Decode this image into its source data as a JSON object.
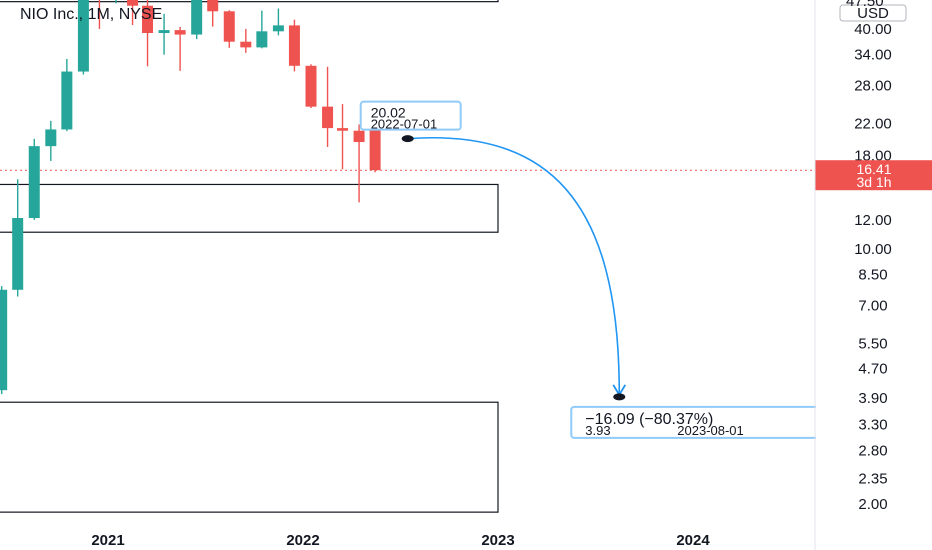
{
  "symbol_title": "NIO Inc., 1M, NYSE",
  "currency_label": "USD",
  "top_price_partial": "47.50",
  "price_badge": {
    "price": "16.41",
    "countdown": "3d 1h",
    "color": "#ef5350"
  },
  "colors": {
    "up": "#26a69a",
    "down": "#ef5350",
    "arrow": "#2196f3",
    "box": "#131722",
    "dotted": "#ef5350",
    "axis_text": "#131722"
  },
  "chart_data": {
    "type": "candlestick",
    "title": "NIO Inc., 1M, NYSE",
    "y_scale": "log",
    "ylim": [
      1.82,
      52.0
    ],
    "y_ticks": [
      "40.00",
      "34.00",
      "28.00",
      "22.00",
      "18.00",
      "12.00",
      "10.00",
      "8.50",
      "7.00",
      "5.50",
      "4.70",
      "3.90",
      "3.30",
      "2.80",
      "2.35",
      "2.00"
    ],
    "x_ticks": [
      "2021",
      "2022",
      "2023",
      "2024"
    ],
    "candles": [
      {
        "date": "2020-04-01",
        "open": 2.6,
        "high": 3.95,
        "low": 2.5,
        "close": 3.95
      },
      {
        "date": "2020-05-01",
        "open": 3.95,
        "high": 4.3,
        "low": 3.45,
        "close": 4.1
      },
      {
        "date": "2020-06-01",
        "open": 4.1,
        "high": 7.9,
        "low": 4.0,
        "close": 7.72
      },
      {
        "date": "2020-07-01",
        "open": 7.72,
        "high": 15.5,
        "low": 7.4,
        "close": 12.14
      },
      {
        "date": "2020-08-01",
        "open": 12.14,
        "high": 20.0,
        "low": 12.0,
        "close": 19.1
      },
      {
        "date": "2020-09-01",
        "open": 19.1,
        "high": 22.4,
        "low": 17.4,
        "close": 21.22
      },
      {
        "date": "2020-10-01",
        "open": 21.22,
        "high": 33.1,
        "low": 21.0,
        "close": 30.57
      },
      {
        "date": "2020-11-01",
        "open": 30.57,
        "high": 55.0,
        "low": 30.0,
        "close": 48.95
      },
      {
        "date": "2020-12-01",
        "open": 48.95,
        "high": 57.2,
        "low": 40.0,
        "close": 48.74
      },
      {
        "date": "2021-01-01",
        "open": 48.74,
        "high": 66.99,
        "low": 47.0,
        "close": 56.9
      },
      {
        "date": "2021-02-01",
        "open": 56.9,
        "high": 59.0,
        "low": 41.0,
        "close": 46.3
      },
      {
        "date": "2021-03-01",
        "open": 46.3,
        "high": 50.0,
        "low": 31.6,
        "close": 38.98
      },
      {
        "date": "2021-04-01",
        "open": 38.98,
        "high": 44.0,
        "low": 34.0,
        "close": 39.7
      },
      {
        "date": "2021-05-01",
        "open": 39.7,
        "high": 40.5,
        "low": 30.7,
        "close": 38.6
      },
      {
        "date": "2021-06-01",
        "open": 38.6,
        "high": 55.1,
        "low": 37.5,
        "close": 53.2
      },
      {
        "date": "2021-07-01",
        "open": 53.2,
        "high": 54.3,
        "low": 40.6,
        "close": 44.7
      },
      {
        "date": "2021-08-01",
        "open": 44.7,
        "high": 45.0,
        "low": 35.5,
        "close": 36.9
      },
      {
        "date": "2021-09-01",
        "open": 36.9,
        "high": 40.0,
        "low": 34.4,
        "close": 35.6
      },
      {
        "date": "2021-10-01",
        "open": 35.6,
        "high": 44.9,
        "low": 35.4,
        "close": 39.4
      },
      {
        "date": "2021-11-01",
        "open": 39.4,
        "high": 45.5,
        "low": 38.4,
        "close": 40.9
      },
      {
        "date": "2021-12-01",
        "open": 40.9,
        "high": 42.4,
        "low": 30.6,
        "close": 31.7
      },
      {
        "date": "2022-01-01",
        "open": 31.7,
        "high": 32.0,
        "low": 24.3,
        "close": 24.5
      },
      {
        "date": "2022-02-01",
        "open": 24.5,
        "high": 31.5,
        "low": 19.0,
        "close": 21.4
      },
      {
        "date": "2022-03-01",
        "open": 21.4,
        "high": 24.9,
        "low": 16.5,
        "close": 21.05
      },
      {
        "date": "2022-04-01",
        "open": 21.05,
        "high": 21.9,
        "low": 13.4,
        "close": 19.6
      },
      {
        "date": "2022-05-01",
        "open": 22.4,
        "high": 23.5,
        "low": 16.2,
        "close": 16.41
      }
    ],
    "current_price": 16.41,
    "rectangles": [
      {
        "date_from": "2019-06-01",
        "date_to": "2023-01-01",
        "price_from": 47.5,
        "price_to": 70.0
      },
      {
        "date_from": "2019-06-01",
        "date_to": "2023-01-01",
        "price_from": 11.1,
        "price_to": 15.0
      },
      {
        "date_from": "2019-06-01",
        "date_to": "2023-01-01",
        "price_from": 1.9,
        "price_to": 3.8
      }
    ],
    "projection": {
      "from": {
        "date": "2022-07-01",
        "price": 20.02
      },
      "to": {
        "date": "2023-08-01",
        "price": 3.93
      },
      "start_label": {
        "price": "20.02",
        "date": "2022-07-01"
      },
      "end_label": {
        "change": "−16.09 (−80.37%)",
        "price": "3.93",
        "date": "2023-08-01"
      }
    }
  }
}
